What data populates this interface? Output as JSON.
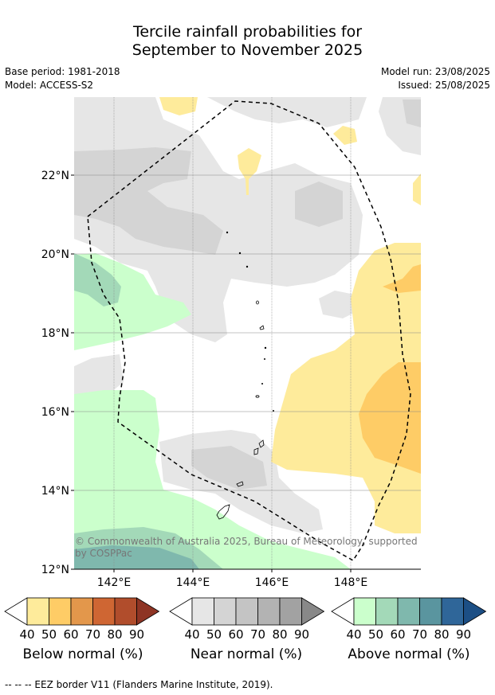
{
  "title": {
    "line1": "Tercile rainfall probabilities for",
    "line2": "September to November 2025"
  },
  "meta": {
    "base_period": "Base period: 1981-2018",
    "model": "Model: ACCESS-S2",
    "model_run": "Model run: 23/08/2025",
    "issued": "Issued: 25/08/2025"
  },
  "map": {
    "lat_labels": [
      "22°N",
      "20°N",
      "18°N",
      "16°N",
      "14°N",
      "12°N"
    ],
    "lon_labels": [
      "142°E",
      "144°E",
      "146°E",
      "148°E"
    ],
    "copyright_line1": "© Commonwealth of Australia 2025, Bureau of Meteorology, supported",
    "copyright_line2": "by COSPPac"
  },
  "colorbars": {
    "below": {
      "label": "Below normal (%)",
      "ticks": [
        "40",
        "50",
        "60",
        "70",
        "80",
        "90"
      ],
      "colors": [
        "#ffffff",
        "#feeb9b",
        "#fecc66",
        "#e3974b",
        "#cf6633",
        "#b14d2c",
        "#8e3424"
      ]
    },
    "near": {
      "label": "Near normal (%)",
      "ticks": [
        "40",
        "50",
        "60",
        "70",
        "80",
        "90"
      ],
      "colors": [
        "#ffffff",
        "#e6e6e6",
        "#d4d4d4",
        "#c4c4c4",
        "#b3b3b3",
        "#a2a2a2",
        "#888888"
      ]
    },
    "above": {
      "label": "Above normal (%)",
      "ticks": [
        "40",
        "50",
        "60",
        "70",
        "80",
        "90"
      ],
      "colors": [
        "#ffffff",
        "#cbffcc",
        "#a3d9b8",
        "#7fb8ad",
        "#5a959f",
        "#2f6699",
        "#1c4f85"
      ]
    }
  },
  "footer": "--  --  -- EEZ border V11 (Flanders Marine Institute, 2019)."
}
